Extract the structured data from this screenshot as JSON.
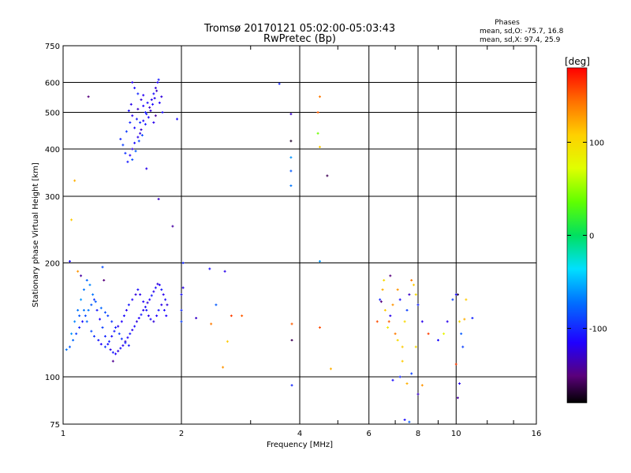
{
  "chart_data": {
    "type": "scatter",
    "title": "Tromsø 20170121 05:02:00-05:03:43",
    "subtitle": "RwPretec (Bp)",
    "xlabel": "Frequency [MHz]",
    "ylabel": "Stationary phase Virtual Height [km]",
    "x_scale": "log",
    "y_scale": "log",
    "xlim": [
      1,
      16
    ],
    "ylim": [
      75,
      750
    ],
    "x_ticks": [
      1,
      2,
      4,
      6,
      8,
      10,
      16
    ],
    "x_tick_labels": [
      "1",
      "2",
      "4",
      "6",
      "8",
      "10",
      "16"
    ],
    "y_ticks": [
      75,
      100,
      200,
      300,
      400,
      500,
      600,
      750
    ],
    "y_tick_labels": [
      "75",
      "100",
      "200",
      "300",
      "400",
      "500",
      "600",
      "750"
    ],
    "grid": true,
    "stats": {
      "heading": "Phases",
      "line_o": "mean, sd,O: -75.7, 16.8",
      "line_x": "mean, sd,X:  97.4, 25.9"
    },
    "colorbar": {
      "label": "[deg]",
      "min": -180,
      "max": 180,
      "ticks": [
        -100,
        0,
        100
      ],
      "tick_labels": [
        "-100",
        "0",
        "100"
      ],
      "placement": "right"
    },
    "series": [
      {
        "points": [
          [
            1.5,
            600,
            -120
          ],
          [
            1.52,
            580,
            -110
          ],
          [
            1.55,
            560,
            -100
          ],
          [
            1.58,
            540,
            -125
          ],
          [
            1.6,
            520,
            -115
          ],
          [
            1.62,
            500,
            -105
          ],
          [
            1.55,
            510,
            -130
          ],
          [
            1.5,
            490,
            -120
          ],
          [
            1.48,
            470,
            -100
          ],
          [
            1.52,
            455,
            -110
          ],
          [
            1.57,
            440,
            -125
          ],
          [
            1.6,
            475,
            -115
          ],
          [
            1.63,
            495,
            -105
          ],
          [
            1.66,
            515,
            -130
          ],
          [
            1.68,
            540,
            -120
          ],
          [
            1.7,
            560,
            -110
          ],
          [
            1.72,
            580,
            -125
          ],
          [
            1.74,
            600,
            -115
          ],
          [
            1.75,
            610,
            -105
          ],
          [
            1.73,
            570,
            -130
          ],
          [
            1.71,
            545,
            -120
          ],
          [
            1.69,
            525,
            -110
          ],
          [
            1.67,
            505,
            -125
          ],
          [
            1.65,
            485,
            -115
          ],
          [
            1.62,
            465,
            -105
          ],
          [
            1.58,
            450,
            -130
          ],
          [
            1.55,
            430,
            -120
          ],
          [
            1.52,
            415,
            -110
          ],
          [
            1.5,
            400,
            -125
          ],
          [
            1.48,
            385,
            -115
          ],
          [
            1.46,
            370,
            -105
          ],
          [
            1.44,
            390,
            -95
          ],
          [
            1.42,
            410,
            -90
          ],
          [
            1.4,
            425,
            -100
          ],
          [
            1.5,
            375,
            -85
          ],
          [
            1.53,
            395,
            -80
          ],
          [
            1.56,
            420,
            -90
          ],
          [
            1.59,
            435,
            -88
          ],
          [
            1.45,
            445,
            -92
          ],
          [
            1.47,
            505,
            -110
          ],
          [
            1.49,
            525,
            -120
          ],
          [
            1.76,
            530,
            -115
          ],
          [
            1.78,
            550,
            -125
          ],
          [
            1.79,
            500,
            -110
          ],
          [
            1.72,
            490,
            -140
          ],
          [
            1.7,
            470,
            -120
          ],
          [
            1.64,
            530,
            -110
          ],
          [
            1.6,
            555,
            -118
          ],
          [
            1.57,
            470,
            -95
          ],
          [
            1.54,
            480,
            -105
          ],
          [
            1.95,
            480,
            -110
          ],
          [
            2.02,
            200,
            -100
          ],
          [
            1.9,
            250,
            -140
          ],
          [
            1.75,
            295,
            -130
          ],
          [
            1.63,
            355,
            -120
          ],
          [
            1.16,
            550,
            -150
          ],
          [
            3.55,
            595,
            -100
          ],
          [
            3.8,
            495,
            -130
          ],
          [
            3.8,
            420,
            -170
          ],
          [
            3.8,
            380,
            -60
          ],
          [
            3.8,
            350,
            -80
          ],
          [
            3.8,
            320,
            -70
          ],
          [
            4.5,
            550,
            140
          ],
          [
            4.45,
            500,
            150
          ],
          [
            4.45,
            440,
            40
          ],
          [
            4.5,
            405,
            110
          ],
          [
            4.7,
            340,
            -160
          ],
          [
            4.5,
            202,
            -60
          ],
          [
            1.07,
            330,
            120
          ],
          [
            1.05,
            260,
            110
          ],
          [
            1.04,
            202,
            -110
          ],
          [
            1.02,
            118,
            -70
          ],
          [
            1.04,
            120,
            -80
          ],
          [
            1.06,
            125,
            -75
          ],
          [
            1.08,
            130,
            -90
          ],
          [
            1.1,
            135,
            -100
          ],
          [
            1.12,
            140,
            -110
          ],
          [
            1.14,
            145,
            -85
          ],
          [
            1.16,
            150,
            -70
          ],
          [
            1.18,
            155,
            -80
          ],
          [
            1.2,
            160,
            -95
          ],
          [
            1.22,
            150,
            -105
          ],
          [
            1.24,
            142,
            -115
          ],
          [
            1.26,
            135,
            -90
          ],
          [
            1.28,
            128,
            -100
          ],
          [
            1.3,
            122,
            -110
          ],
          [
            1.32,
            118,
            -120
          ],
          [
            1.34,
            116,
            -105
          ],
          [
            1.36,
            115,
            -115
          ],
          [
            1.38,
            117,
            -125
          ],
          [
            1.4,
            119,
            -110
          ],
          [
            1.42,
            121,
            -120
          ],
          [
            1.44,
            124,
            -130
          ],
          [
            1.46,
            127,
            -115
          ],
          [
            1.48,
            130,
            -105
          ],
          [
            1.5,
            133,
            -120
          ],
          [
            1.52,
            136,
            -110
          ],
          [
            1.54,
            140,
            -125
          ],
          [
            1.56,
            143,
            -115
          ],
          [
            1.58,
            146,
            -105
          ],
          [
            1.6,
            150,
            -120
          ],
          [
            1.62,
            153,
            -110
          ],
          [
            1.64,
            157,
            -125
          ],
          [
            1.66,
            160,
            -115
          ],
          [
            1.68,
            164,
            -105
          ],
          [
            1.7,
            168,
            -120
          ],
          [
            1.72,
            172,
            -110
          ],
          [
            1.74,
            176,
            -125
          ],
          [
            1.76,
            175,
            -115
          ],
          [
            1.78,
            170,
            -105
          ],
          [
            1.8,
            165,
            -120
          ],
          [
            1.82,
            160,
            -110
          ],
          [
            1.84,
            155,
            -125
          ],
          [
            1.1,
            145,
            -80
          ],
          [
            1.13,
            150,
            -70
          ],
          [
            1.15,
            140,
            -75
          ],
          [
            1.18,
            132,
            -85
          ],
          [
            1.2,
            128,
            -95
          ],
          [
            1.23,
            125,
            -105
          ],
          [
            1.25,
            122,
            -115
          ],
          [
            1.28,
            120,
            -95
          ],
          [
            1.31,
            124,
            -100
          ],
          [
            1.33,
            128,
            -110
          ],
          [
            1.35,
            132,
            -105
          ],
          [
            1.38,
            136,
            -120
          ],
          [
            1.41,
            140,
            -115
          ],
          [
            1.43,
            145,
            -110
          ],
          [
            1.45,
            150,
            -120
          ],
          [
            1.47,
            155,
            -105
          ],
          [
            1.5,
            160,
            -115
          ],
          [
            1.53,
            165,
            -125
          ],
          [
            1.55,
            170,
            -110
          ],
          [
            1.57,
            165,
            -120
          ],
          [
            1.6,
            158,
            -115
          ],
          [
            1.63,
            150,
            -105
          ],
          [
            1.65,
            145,
            -120
          ],
          [
            1.67,
            142,
            -110
          ],
          [
            1.7,
            140,
            -125
          ],
          [
            1.73,
            145,
            -115
          ],
          [
            1.75,
            150,
            -105
          ],
          [
            1.78,
            155,
            -120
          ],
          [
            1.81,
            150,
            -110
          ],
          [
            1.83,
            145,
            -115
          ],
          [
            1.05,
            130,
            -60
          ],
          [
            1.07,
            140,
            -65
          ],
          [
            1.09,
            150,
            -70
          ],
          [
            1.11,
            160,
            -60
          ],
          [
            1.13,
            170,
            -70
          ],
          [
            1.15,
            180,
            -75
          ],
          [
            1.17,
            175,
            -65
          ],
          [
            1.19,
            165,
            -70
          ],
          [
            1.21,
            158,
            -80
          ],
          [
            1.25,
            152,
            -75
          ],
          [
            1.28,
            148,
            -85
          ],
          [
            1.3,
            145,
            -90
          ],
          [
            1.33,
            140,
            -95
          ],
          [
            1.36,
            135,
            -100
          ],
          [
            1.39,
            130,
            -90
          ],
          [
            1.41,
            126,
            -95
          ],
          [
            1.44,
            123,
            -100
          ],
          [
            1.47,
            121,
            -105
          ],
          [
            1.09,
            190,
            130
          ],
          [
            1.26,
            195,
            -85
          ],
          [
            1.34,
            110,
            -145
          ],
          [
            1.27,
            180,
            -150
          ],
          [
            1.11,
            185,
            -140
          ],
          [
            2.02,
            172,
            -120
          ],
          [
            2.0,
            165,
            -110
          ],
          [
            2.0,
            150,
            -100
          ],
          [
            2.0,
            140,
            -90
          ],
          [
            2.18,
            143,
            -130
          ],
          [
            2.38,
            138,
            140
          ],
          [
            2.36,
            193,
            -110
          ],
          [
            2.58,
            190,
            -120
          ],
          [
            2.45,
            155,
            -80
          ],
          [
            2.68,
            145,
            160
          ],
          [
            2.62,
            124,
            110
          ],
          [
            2.55,
            106,
            130
          ],
          [
            2.85,
            145,
            150
          ],
          [
            3.82,
            125,
            -160
          ],
          [
            3.82,
            138,
            150
          ],
          [
            3.82,
            95,
            -100
          ],
          [
            4.5,
            135,
            155
          ],
          [
            4.8,
            105,
            120
          ],
          [
            6.3,
            140,
            155
          ],
          [
            6.4,
            160,
            -100
          ],
          [
            6.5,
            170,
            120
          ],
          [
            6.55,
            180,
            100
          ],
          [
            6.6,
            150,
            110
          ],
          [
            6.7,
            135,
            90
          ],
          [
            6.8,
            145,
            -120
          ],
          [
            6.9,
            155,
            130
          ],
          [
            7.0,
            130,
            140
          ],
          [
            7.1,
            125,
            100
          ],
          [
            7.2,
            160,
            -110
          ],
          [
            7.3,
            120,
            110
          ],
          [
            7.4,
            140,
            100
          ],
          [
            7.5,
            150,
            -90
          ],
          [
            7.6,
            165,
            -130
          ],
          [
            7.7,
            180,
            140
          ],
          [
            7.8,
            175,
            110
          ],
          [
            7.9,
            165,
            100
          ],
          [
            8.0,
            155,
            -100
          ],
          [
            8.2,
            140,
            -120
          ],
          [
            8.5,
            130,
            160
          ],
          [
            9.0,
            125,
            -110
          ],
          [
            9.5,
            140,
            -120
          ],
          [
            9.8,
            160,
            -90
          ],
          [
            10.1,
            165,
            -170
          ],
          [
            10.2,
            140,
            100
          ],
          [
            10.3,
            130,
            -80
          ],
          [
            10.5,
            142,
            120
          ],
          [
            10.6,
            160,
            110
          ],
          [
            11.0,
            143,
            -100
          ],
          [
            6.9,
            98,
            -110
          ],
          [
            7.2,
            100,
            -100
          ],
          [
            7.5,
            96,
            120
          ],
          [
            7.7,
            102,
            -90
          ],
          [
            8.0,
            90,
            -130
          ],
          [
            8.2,
            95,
            130
          ],
          [
            7.4,
            77,
            -110
          ],
          [
            7.6,
            76,
            -80
          ],
          [
            10.0,
            108,
            160
          ],
          [
            10.2,
            96,
            -120
          ],
          [
            10.1,
            88,
            -140
          ],
          [
            6.8,
            185,
            -150
          ],
          [
            7.3,
            110,
            110
          ],
          [
            7.1,
            170,
            130
          ],
          [
            6.45,
            158,
            -150
          ],
          [
            6.75,
            140,
            150
          ],
          [
            9.3,
            130,
            80
          ],
          [
            10.4,
            120,
            -90
          ],
          [
            10.0,
            165,
            -110
          ],
          [
            7.9,
            120,
            100
          ]
        ]
      }
    ]
  }
}
